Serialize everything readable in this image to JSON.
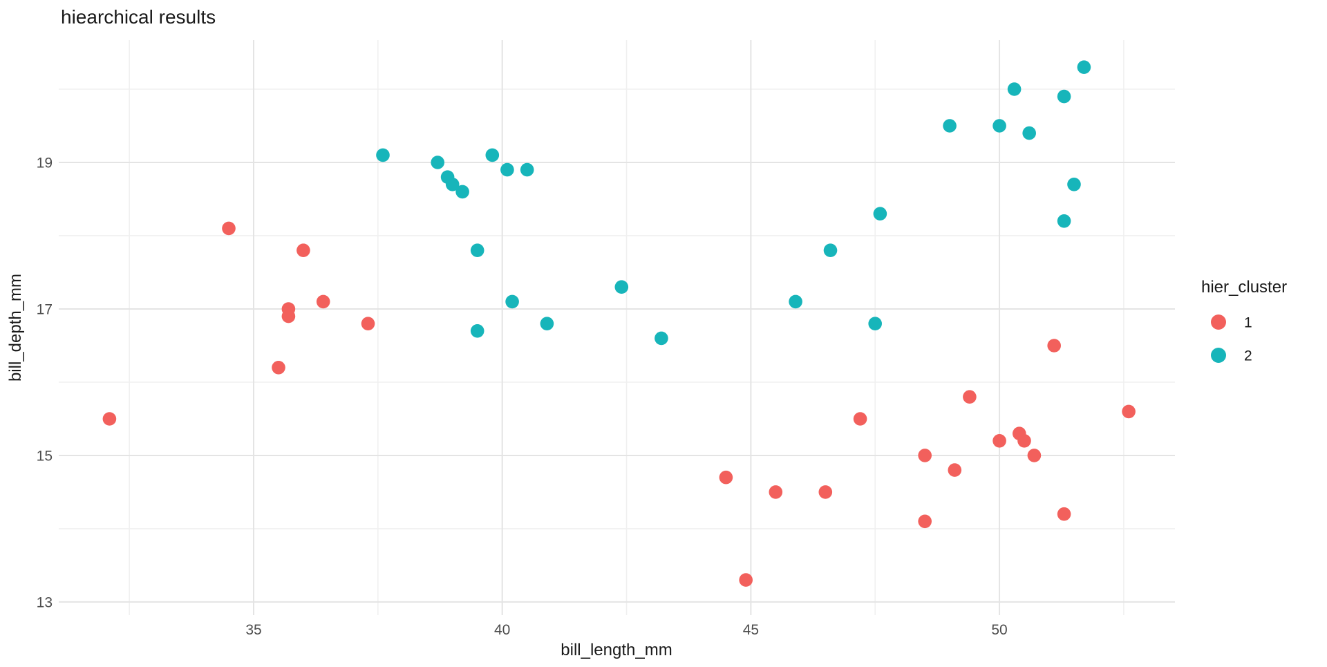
{
  "chart_data": {
    "type": "scatter",
    "title": "hiearchical results",
    "xlabel": "bill_length_mm",
    "ylabel": "bill_depth_mm",
    "legend_title": "hier_cluster",
    "legend_position": "right",
    "grid": true,
    "background": "#ffffff",
    "major_grid_color": "#e4e4e4",
    "minor_grid_color": "#f0f0f0",
    "tick_label_color": "#4d4d4d",
    "text_color": "#1a1a1a",
    "xlim": [
      31.08,
      53.53
    ],
    "ylim": [
      12.82,
      20.67
    ],
    "x_major_ticks": [
      35,
      40,
      45,
      50
    ],
    "x_minor_ticks": [
      32.5,
      37.5,
      42.5,
      47.5,
      52.5
    ],
    "y_major_ticks": [
      13,
      15,
      17,
      19
    ],
    "y_minor_ticks": [
      14,
      16,
      18,
      20
    ],
    "series": [
      {
        "name": "1",
        "color": "#f2605c",
        "points": [
          [
            32.1,
            15.5
          ],
          [
            34.5,
            18.1
          ],
          [
            35.5,
            16.2
          ],
          [
            35.7,
            17.0
          ],
          [
            35.7,
            16.9
          ],
          [
            36.0,
            17.8
          ],
          [
            36.4,
            17.1
          ],
          [
            37.3,
            16.8
          ],
          [
            44.5,
            14.7
          ],
          [
            44.9,
            13.3
          ],
          [
            45.5,
            14.5
          ],
          [
            46.5,
            14.5
          ],
          [
            47.2,
            15.5
          ],
          [
            48.5,
            15.0
          ],
          [
            48.5,
            14.1
          ],
          [
            49.1,
            14.8
          ],
          [
            49.4,
            15.8
          ],
          [
            50.0,
            15.2
          ],
          [
            50.4,
            15.3
          ],
          [
            50.5,
            15.2
          ],
          [
            50.7,
            15.0
          ],
          [
            51.1,
            16.5
          ],
          [
            51.3,
            14.2
          ],
          [
            52.6,
            15.6
          ]
        ]
      },
      {
        "name": "2",
        "color": "#17b5ba",
        "points": [
          [
            37.6,
            19.1
          ],
          [
            38.7,
            19.0
          ],
          [
            38.9,
            18.8
          ],
          [
            39.0,
            18.7
          ],
          [
            39.2,
            18.6
          ],
          [
            39.5,
            17.8
          ],
          [
            39.5,
            16.7
          ],
          [
            39.8,
            19.1
          ],
          [
            40.1,
            18.9
          ],
          [
            40.2,
            17.1
          ],
          [
            40.5,
            18.9
          ],
          [
            40.9,
            16.8
          ],
          [
            42.4,
            17.3
          ],
          [
            43.2,
            16.6
          ],
          [
            45.9,
            17.1
          ],
          [
            46.6,
            17.8
          ],
          [
            47.5,
            16.8
          ],
          [
            47.6,
            18.3
          ],
          [
            49.0,
            19.5
          ],
          [
            50.0,
            19.5
          ],
          [
            50.3,
            20.0
          ],
          [
            50.6,
            19.4
          ],
          [
            51.3,
            19.9
          ],
          [
            51.3,
            18.2
          ],
          [
            51.5,
            18.7
          ],
          [
            51.7,
            20.3
          ]
        ]
      }
    ]
  }
}
